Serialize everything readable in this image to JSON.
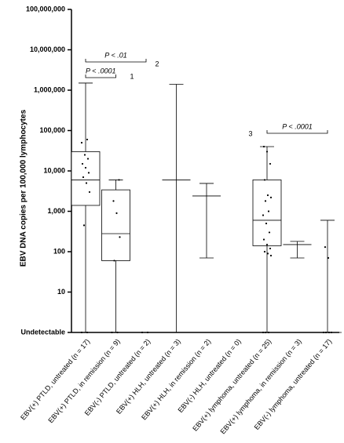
{
  "chart_data": {
    "type": "box",
    "y_label": "EBV DNA copies per 100,000 lymphocytes",
    "y_scale": "log",
    "ylim": [
      1,
      100000000
    ],
    "yticks": [
      {
        "value": 100000000,
        "label": "100,000,000"
      },
      {
        "value": 10000000,
        "label": "10,000,000"
      },
      {
        "value": 1000000,
        "label": "1,000,000"
      },
      {
        "value": 100000,
        "label": "100,000"
      },
      {
        "value": 10000,
        "label": "10,000"
      },
      {
        "value": 1000,
        "label": "1,000"
      },
      100,
      10,
      {
        "value": 1,
        "label": "Undetectable"
      }
    ],
    "categories": [
      "EBV(+) PTLD, untreated (n = 17)",
      "EBV(+) PTLD, in remission (n = 9)",
      "EBV(-) PTLD, untreated (n = 2)",
      "EBV(+) HLH, untreated (n = 3)",
      "EBV(+) HLH, in remission (n = 2)",
      "EBV(-) HLH, untreated (n = 0)",
      "EBV(+) lymphoma, untreated (n = 25)",
      "EBV(+) lymphoma, in remission (n = 3)",
      "EBV(-) lymphoma, untreated (n = 17)"
    ],
    "boxes": [
      {
        "min": 1,
        "q1": 1400,
        "median": 6000,
        "q3": 30000,
        "max": 1500000,
        "points": [
          1,
          1,
          450,
          3000,
          5000,
          7000,
          9000,
          12000,
          15000,
          20000,
          25000,
          50000,
          60000
        ]
      },
      {
        "min": 1,
        "q1": 60,
        "median": 280,
        "q3": 3400,
        "max": 6000,
        "points": [
          1,
          1,
          60,
          230,
          900,
          1800,
          6000
        ]
      },
      {
        "min": 1,
        "q1": null,
        "median": 1,
        "q3": null,
        "max": 1,
        "points": [
          1,
          1
        ]
      },
      {
        "min": 1,
        "q1": null,
        "median": 6000,
        "q3": null,
        "max": 1400000,
        "points": []
      },
      {
        "min": 70,
        "q1": null,
        "median": 2400,
        "q3": null,
        "max": 4900,
        "points": []
      },
      {
        "min": null,
        "q1": null,
        "median": null,
        "q3": null,
        "max": null,
        "points": []
      },
      {
        "min": 1,
        "q1": 140,
        "median": 600,
        "q3": 6000,
        "max": 40000,
        "points": [
          1,
          1,
          1,
          80,
          90,
          100,
          120,
          150,
          200,
          300,
          500,
          800,
          1000,
          1800,
          2200,
          2500,
          6000,
          15000,
          30000,
          40000
        ]
      },
      {
        "min": 70,
        "q1": null,
        "median": 150,
        "q3": null,
        "max": 180,
        "points": []
      },
      {
        "min": 1,
        "q1": null,
        "median": 1,
        "q3": null,
        "max": 600,
        "points": [
          1,
          1,
          1,
          1,
          70,
          130
        ]
      }
    ],
    "comparisons": [
      "P < .01",
      "P < .0001",
      "P < .0001"
    ],
    "markers": [
      "1",
      "2",
      "3"
    ]
  }
}
